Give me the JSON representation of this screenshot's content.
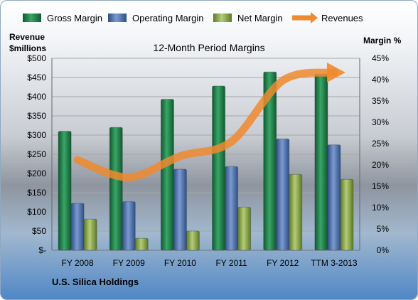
{
  "chart_data": {
    "type": "bar",
    "title": "12-Month Period Margins",
    "categories": [
      "FY 2008",
      "FY 2009",
      "FY 2010",
      "FY 2011",
      "FY 2012",
      "TTM 3-2013"
    ],
    "series": [
      {
        "name": "Gross Margin",
        "axis": "right",
        "unit": "%",
        "color": "#1e7a45",
        "values": [
          27.9,
          28.8,
          35.4,
          38.5,
          41.8,
          41.3
        ]
      },
      {
        "name": "Operating Margin",
        "axis": "right",
        "unit": "%",
        "color": "#4a6fad",
        "values": [
          11.0,
          11.4,
          19.0,
          19.6,
          26.1,
          24.7
        ]
      },
      {
        "name": "Net Margin",
        "axis": "right",
        "unit": "%",
        "color": "#8daa4b",
        "values": [
          7.3,
          2.8,
          4.5,
          10.1,
          17.8,
          16.6
        ]
      },
      {
        "name": "Revenues",
        "type": "line",
        "axis": "left",
        "unit": "$millions",
        "color": "#f08a2e",
        "values": [
          235,
          190,
          245,
          283,
          442,
          463
        ]
      }
    ],
    "left_axis": {
      "label_line1": "Revenue",
      "label_line2": "$millions",
      "min": 0,
      "max": 500,
      "step": 50,
      "ticks": [
        "$-",
        "$50",
        "$100",
        "$150",
        "$200",
        "$250",
        "$300",
        "$350",
        "$400",
        "$450",
        "$500"
      ]
    },
    "right_axis": {
      "label": "Margin %",
      "min": 0,
      "max": 45,
      "step": 5,
      "ticks": [
        "0%",
        "5%",
        "10%",
        "15%",
        "20%",
        "25%",
        "30%",
        "35%",
        "40%",
        "45%"
      ]
    },
    "grid": true,
    "legend_position": "top"
  },
  "footer": {
    "company": "U.S. Silica Holdings"
  }
}
